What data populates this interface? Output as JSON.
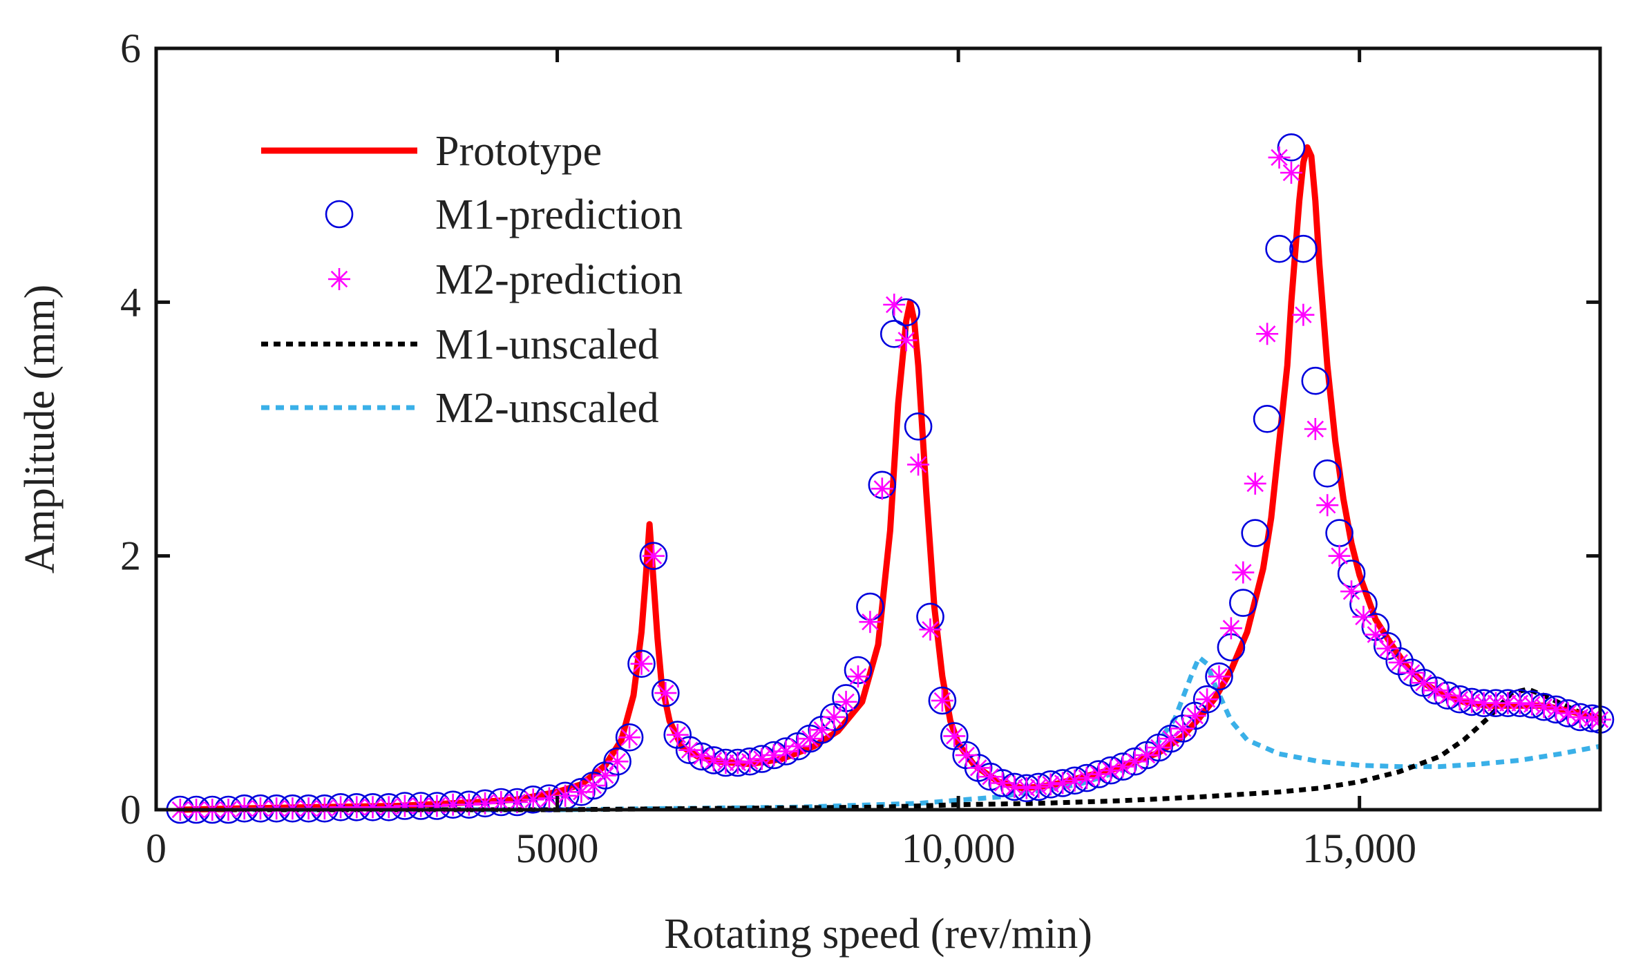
{
  "chart_data": {
    "type": "line",
    "title": "",
    "xlabel": "Rotating speed (rev/min)",
    "ylabel": "Amplitude (mm)",
    "xlim": [
      0,
      18000
    ],
    "ylim": [
      0,
      6
    ],
    "grid": false,
    "legend_position": "top-left",
    "x_ticks": [
      0,
      5000,
      10000,
      15000
    ],
    "x_tick_labels": [
      "0",
      "5000",
      "10,000",
      "15,000"
    ],
    "y_ticks": [
      0,
      2,
      4,
      6
    ],
    "y_tick_labels": [
      "0",
      "2",
      "4",
      "6"
    ],
    "colors": {
      "prototype": "#ff0000",
      "m1_prediction": "#0000dd",
      "m2_prediction": "#ff00ff",
      "m1_unscaled": "#000000",
      "m2_unscaled": "#3ab0e8",
      "axes": "#111111"
    },
    "series": [
      {
        "name": "Prototype",
        "style": "solid-line",
        "x": [
          300,
          1000,
          2000,
          3000,
          4000,
          4500,
          5000,
          5300,
          5600,
          5800,
          5950,
          6050,
          6100,
          6150,
          6200,
          6250,
          6300,
          6400,
          6550,
          6750,
          7000,
          7400,
          7800,
          8200,
          8500,
          8800,
          9000,
          9150,
          9250,
          9350,
          9400,
          9450,
          9500,
          9550,
          9600,
          9700,
          9800,
          9900,
          10000,
          10200,
          10500,
          10800,
          11000,
          11200,
          11500,
          12000,
          12500,
          12800,
          13000,
          13200,
          13400,
          13600,
          13800,
          13900,
          14000,
          14100,
          14150,
          14200,
          14250,
          14300,
          14350,
          14400,
          14450,
          14500,
          14600,
          14700,
          14800,
          14900,
          15000,
          15200,
          15400,
          15600,
          15800,
          16000,
          16300,
          16600,
          17000,
          17300,
          17600,
          18000
        ],
        "y": [
          0.0,
          0.01,
          0.02,
          0.03,
          0.06,
          0.08,
          0.14,
          0.2,
          0.35,
          0.55,
          0.9,
          1.4,
          1.8,
          2.25,
          1.8,
          1.35,
          1.0,
          0.7,
          0.5,
          0.42,
          0.38,
          0.36,
          0.4,
          0.5,
          0.62,
          0.85,
          1.3,
          2.2,
          3.2,
          3.85,
          4.0,
          3.85,
          3.5,
          3.0,
          2.5,
          1.6,
          1.05,
          0.7,
          0.52,
          0.35,
          0.22,
          0.17,
          0.18,
          0.2,
          0.25,
          0.33,
          0.45,
          0.58,
          0.72,
          0.88,
          1.1,
          1.4,
          1.9,
          2.3,
          2.9,
          3.5,
          4.0,
          4.4,
          4.8,
          5.1,
          5.22,
          5.15,
          4.8,
          4.3,
          3.5,
          2.9,
          2.45,
          2.1,
          1.85,
          1.5,
          1.3,
          1.12,
          1.0,
          0.92,
          0.85,
          0.82,
          0.82,
          0.82,
          0.78,
          0.72
        ]
      },
      {
        "name": "M1-prediction",
        "style": "circle-markers",
        "x": [
          300,
          500,
          700,
          900,
          1100,
          1300,
          1500,
          1700,
          1900,
          2100,
          2300,
          2500,
          2700,
          2900,
          3100,
          3300,
          3500,
          3700,
          3900,
          4100,
          4300,
          4500,
          4700,
          4900,
          5100,
          5300,
          5450,
          5600,
          5750,
          5900,
          6050,
          6200,
          6350,
          6500,
          6650,
          6800,
          6950,
          7100,
          7250,
          7400,
          7550,
          7700,
          7850,
          8000,
          8150,
          8300,
          8450,
          8600,
          8750,
          8900,
          9050,
          9200,
          9350,
          9500,
          9650,
          9800,
          9950,
          10100,
          10250,
          10400,
          10550,
          10700,
          10850,
          11000,
          11150,
          11300,
          11450,
          11600,
          11750,
          11900,
          12050,
          12200,
          12350,
          12500,
          12650,
          12800,
          12950,
          13100,
          13250,
          13400,
          13550,
          13700,
          13850,
          14000,
          14150,
          14300,
          14450,
          14600,
          14750,
          14900,
          15050,
          15200,
          15350,
          15500,
          15650,
          15800,
          15950,
          16100,
          16250,
          16400,
          16550,
          16700,
          16850,
          17000,
          17150,
          17300,
          17450,
          17600,
          17750,
          17900,
          18000
        ],
        "y": [
          0.0,
          0.0,
          0.0,
          0.0,
          0.01,
          0.01,
          0.01,
          0.01,
          0.01,
          0.01,
          0.02,
          0.02,
          0.02,
          0.02,
          0.03,
          0.03,
          0.03,
          0.04,
          0.04,
          0.05,
          0.06,
          0.06,
          0.08,
          0.09,
          0.11,
          0.14,
          0.19,
          0.27,
          0.38,
          0.57,
          1.15,
          2.0,
          0.92,
          0.59,
          0.47,
          0.42,
          0.39,
          0.37,
          0.37,
          0.38,
          0.4,
          0.43,
          0.46,
          0.5,
          0.56,
          0.63,
          0.73,
          0.88,
          1.1,
          1.6,
          2.56,
          3.75,
          3.92,
          3.02,
          1.52,
          0.86,
          0.58,
          0.43,
          0.33,
          0.26,
          0.21,
          0.18,
          0.17,
          0.18,
          0.2,
          0.21,
          0.23,
          0.25,
          0.28,
          0.31,
          0.34,
          0.38,
          0.43,
          0.49,
          0.56,
          0.64,
          0.74,
          0.87,
          1.05,
          1.28,
          1.63,
          2.18,
          3.08,
          4.42,
          5.22,
          4.42,
          3.38,
          2.65,
          2.18,
          1.86,
          1.62,
          1.44,
          1.29,
          1.17,
          1.08,
          1.0,
          0.94,
          0.9,
          0.87,
          0.85,
          0.84,
          0.84,
          0.84,
          0.84,
          0.83,
          0.81,
          0.79,
          0.76,
          0.73,
          0.72,
          0.71
        ]
      },
      {
        "name": "M2-prediction",
        "style": "asterisk-markers",
        "x": [
          300,
          500,
          700,
          900,
          1100,
          1300,
          1500,
          1700,
          1900,
          2100,
          2300,
          2500,
          2700,
          2900,
          3100,
          3300,
          3500,
          3700,
          3900,
          4100,
          4300,
          4500,
          4700,
          4900,
          5100,
          5300,
          5450,
          5600,
          5750,
          5900,
          6050,
          6200,
          6350,
          6500,
          6650,
          6800,
          6950,
          7100,
          7250,
          7400,
          7550,
          7700,
          7850,
          8000,
          8150,
          8300,
          8450,
          8600,
          8750,
          8900,
          9050,
          9200,
          9350,
          9500,
          9650,
          9800,
          9950,
          10100,
          10250,
          10400,
          10550,
          10700,
          10850,
          11000,
          11150,
          11300,
          11450,
          11600,
          11750,
          11900,
          12050,
          12200,
          12350,
          12500,
          12650,
          12800,
          12950,
          13100,
          13250,
          13400,
          13550,
          13700,
          13850,
          14000,
          14150,
          14300,
          14450,
          14600,
          14750,
          14900,
          15050,
          15200,
          15350,
          15500,
          15650,
          15800,
          15950,
          16100,
          16250,
          16400,
          16550,
          16700,
          16850,
          17000,
          17150,
          17300,
          17450,
          17600,
          17750,
          17900,
          18000
        ],
        "y": [
          0.0,
          0.0,
          0.0,
          0.0,
          0.01,
          0.01,
          0.01,
          0.01,
          0.01,
          0.01,
          0.02,
          0.02,
          0.02,
          0.02,
          0.03,
          0.03,
          0.03,
          0.04,
          0.04,
          0.05,
          0.06,
          0.06,
          0.08,
          0.09,
          0.11,
          0.14,
          0.19,
          0.27,
          0.38,
          0.57,
          1.15,
          2.0,
          0.92,
          0.59,
          0.47,
          0.42,
          0.39,
          0.37,
          0.37,
          0.38,
          0.4,
          0.43,
          0.46,
          0.5,
          0.56,
          0.63,
          0.73,
          0.85,
          1.05,
          1.48,
          2.53,
          3.98,
          3.7,
          2.72,
          1.42,
          0.86,
          0.58,
          0.43,
          0.33,
          0.26,
          0.21,
          0.18,
          0.17,
          0.18,
          0.2,
          0.21,
          0.23,
          0.25,
          0.28,
          0.31,
          0.34,
          0.38,
          0.43,
          0.49,
          0.56,
          0.64,
          0.74,
          0.87,
          1.05,
          1.43,
          1.87,
          2.57,
          3.75,
          5.14,
          5.02,
          3.9,
          3.0,
          2.4,
          2.0,
          1.72,
          1.52,
          1.38,
          1.27,
          1.16,
          1.08,
          1.0,
          0.94,
          0.9,
          0.87,
          0.85,
          0.84,
          0.84,
          0.84,
          0.84,
          0.83,
          0.81,
          0.79,
          0.76,
          0.73,
          0.72,
          0.71
        ]
      },
      {
        "name": "M1-unscaled",
        "style": "dotted-line",
        "x": [
          300,
          5000,
          9000,
          10000,
          11000,
          12000,
          13000,
          14000,
          14500,
          15000,
          15500,
          16000,
          16300,
          16600,
          16900,
          17100,
          17300,
          17500,
          17700,
          17900,
          18000
        ],
        "y": [
          0.0,
          0.0,
          0.02,
          0.04,
          0.05,
          0.07,
          0.1,
          0.14,
          0.17,
          0.22,
          0.3,
          0.42,
          0.55,
          0.72,
          0.92,
          0.95,
          0.9,
          0.84,
          0.78,
          0.72,
          0.7
        ]
      },
      {
        "name": "M2-unscaled",
        "style": "dotted-line",
        "x": [
          300,
          5000,
          8000,
          9500,
          10500,
          11500,
          12000,
          12400,
          12700,
          12900,
          13000,
          13100,
          13200,
          13400,
          13600,
          14000,
          14500,
          15000,
          15500,
          16000,
          16500,
          17000,
          17500,
          18000
        ],
        "y": [
          0.0,
          0.0,
          0.02,
          0.05,
          0.1,
          0.2,
          0.3,
          0.45,
          0.72,
          1.05,
          1.2,
          1.15,
          0.98,
          0.7,
          0.55,
          0.44,
          0.38,
          0.35,
          0.34,
          0.34,
          0.36,
          0.39,
          0.44,
          0.5
        ]
      }
    ]
  }
}
